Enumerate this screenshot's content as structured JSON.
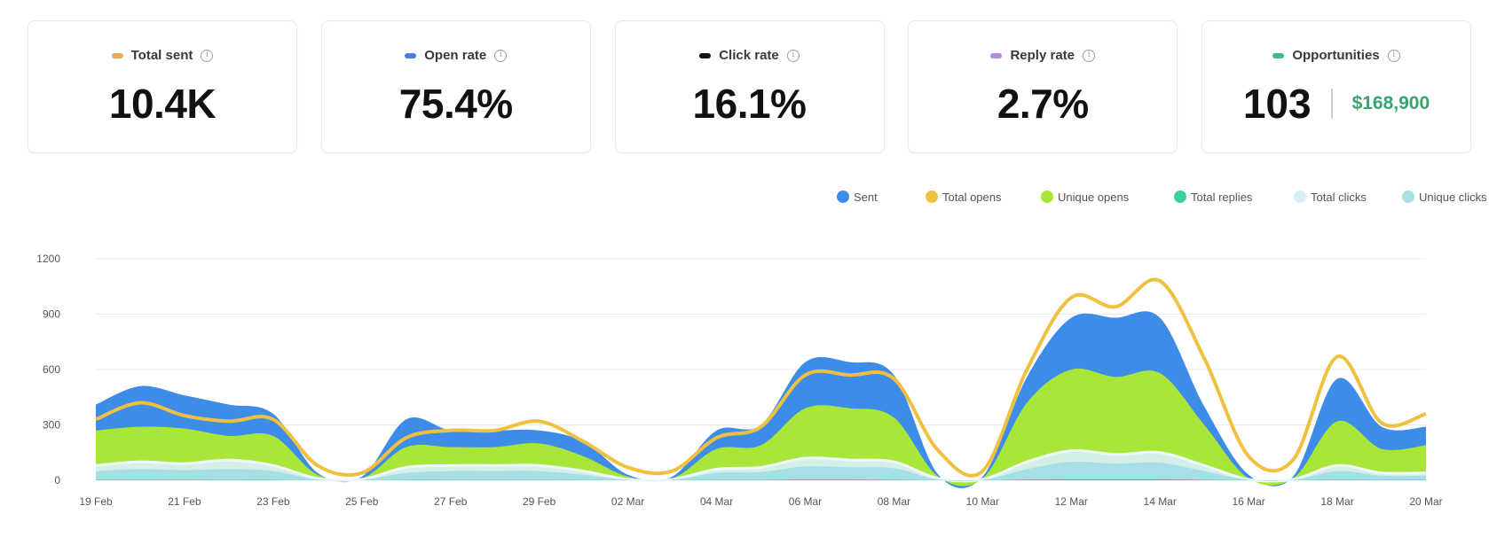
{
  "cards": [
    {
      "label": "Total sent",
      "value": "10.4K",
      "color": "#e8a95a"
    },
    {
      "label": "Open rate",
      "value": "75.4%",
      "color": "#4a7be0"
    },
    {
      "label": "Click rate",
      "value": "16.1%",
      "color": "#111111"
    },
    {
      "label": "Reply rate",
      "value": "2.7%",
      "color": "#b58ae0"
    },
    {
      "label": "Opportunities",
      "value": "103",
      "value2": "$168,900",
      "color": "#3bbf7a"
    }
  ],
  "info_icon": "info-icon",
  "chart_data": {
    "type": "area",
    "x": [
      "19 Feb",
      "20 Feb",
      "21 Feb",
      "22 Feb",
      "23 Feb",
      "24 Feb",
      "25 Feb",
      "26 Feb",
      "27 Feb",
      "28 Feb",
      "29 Feb",
      "01 Mar",
      "02 Mar",
      "03 Mar",
      "04 Mar",
      "05 Mar",
      "06 Mar",
      "07 Mar",
      "08 Mar",
      "09 Mar",
      "10 Mar",
      "11 Mar",
      "12 Mar",
      "13 Mar",
      "14 Mar",
      "15 Mar",
      "16 Mar",
      "17 Mar",
      "18 Mar",
      "19 Mar",
      "20 Mar"
    ],
    "x_tick_labels": [
      "19 Feb",
      "21 Feb",
      "23 Feb",
      "25 Feb",
      "27 Feb",
      "29 Feb",
      "02 Mar",
      "04 Mar",
      "06 Mar",
      "08 Mar",
      "10 Mar",
      "12 Mar",
      "14 Mar",
      "16 Mar",
      "18 Mar",
      "20 Mar"
    ],
    "y_ticks": [
      "0",
      "300",
      "600",
      "900",
      "1200"
    ],
    "ylim": [
      0,
      1200
    ],
    "grid": true,
    "legend_position": "top-right",
    "series": [
      {
        "name": "Sent",
        "kind": "area",
        "color": "#3d8ce8",
        "values": [
          410,
          510,
          460,
          410,
          360,
          40,
          20,
          330,
          270,
          270,
          270,
          210,
          30,
          20,
          270,
          300,
          640,
          640,
          570,
          30,
          20,
          560,
          880,
          880,
          880,
          400,
          30,
          20,
          550,
          290,
          290
        ]
      },
      {
        "name": "Total opens",
        "kind": "line",
        "color": "#f0c040",
        "values": [
          330,
          420,
          350,
          320,
          330,
          80,
          40,
          230,
          270,
          270,
          320,
          210,
          70,
          50,
          230,
          290,
          570,
          570,
          550,
          160,
          50,
          600,
          990,
          940,
          1080,
          660,
          130,
          110,
          670,
          310,
          360
        ]
      },
      {
        "name": "Unique opens",
        "kind": "area",
        "color": "#a9e63a",
        "values": [
          270,
          290,
          280,
          240,
          240,
          30,
          10,
          180,
          180,
          180,
          200,
          130,
          20,
          10,
          170,
          190,
          390,
          390,
          340,
          20,
          10,
          420,
          600,
          560,
          580,
          300,
          10,
          10,
          320,
          170,
          190
        ]
      },
      {
        "name": "Total replies",
        "kind": "area",
        "color": "#3ad0a0",
        "values": [
          3,
          3,
          3,
          2,
          2,
          0,
          0,
          2,
          2,
          2,
          2,
          1,
          0,
          0,
          2,
          2,
          4,
          4,
          3,
          0,
          0,
          4,
          6,
          6,
          6,
          3,
          0,
          0,
          3,
          2,
          2
        ]
      },
      {
        "name": "Total clicks",
        "kind": "area",
        "color": "#d8effa",
        "values": [
          80,
          100,
          90,
          110,
          80,
          10,
          5,
          70,
          80,
          80,
          80,
          50,
          5,
          5,
          60,
          70,
          120,
          110,
          100,
          10,
          5,
          100,
          160,
          140,
          150,
          80,
          5,
          5,
          80,
          40,
          40
        ]
      },
      {
        "name": "Unique clicks",
        "kind": "area",
        "color": "#a8dfe6",
        "values": [
          50,
          60,
          55,
          60,
          50,
          5,
          3,
          40,
          50,
          50,
          50,
          30,
          3,
          3,
          40,
          45,
          75,
          70,
          65,
          5,
          3,
          60,
          100,
          90,
          95,
          50,
          3,
          3,
          50,
          25,
          25
        ]
      }
    ]
  }
}
